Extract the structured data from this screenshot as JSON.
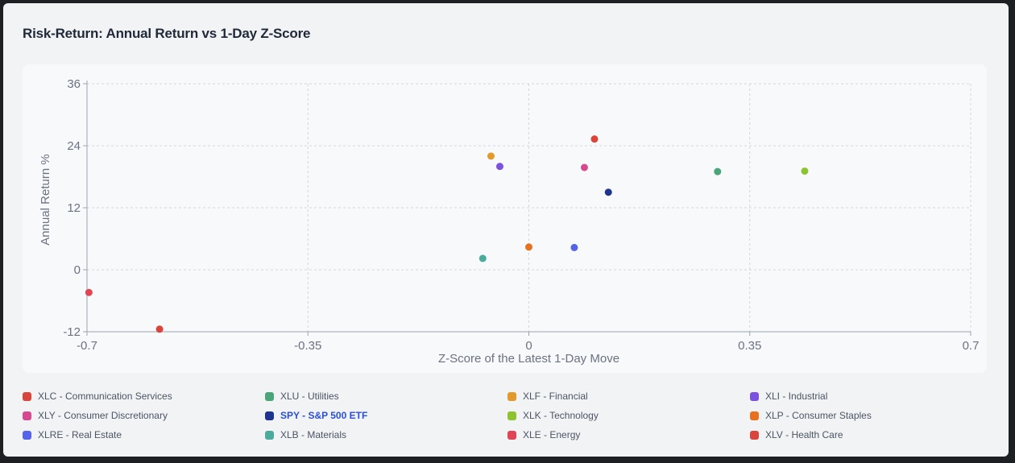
{
  "card": {
    "title": "Risk-Return: Annual Return vs 1-Day Z-Score"
  },
  "chart_data": {
    "type": "scatter",
    "title": "",
    "xlabel": "Z-Score of the Latest 1-Day Move",
    "ylabel": "Annual Return %",
    "xlim": [
      -0.7,
      0.7
    ],
    "ylim": [
      -12,
      36
    ],
    "x_ticks": [
      -0.7,
      -0.35,
      0,
      0.35,
      0.7
    ],
    "x_tick_labels": [
      "-0.7",
      "-0.35",
      "0",
      "0.35",
      "0.7"
    ],
    "y_ticks": [
      -12,
      0,
      12,
      24,
      36
    ],
    "y_tick_labels": [
      "-12",
      "0",
      "12",
      "24",
      "36"
    ],
    "grid": true,
    "legend_position": "bottom",
    "series": [
      {
        "name": "XLC - Communication Services",
        "color": "#d9453b",
        "x": 0.104,
        "y": 25.3
      },
      {
        "name": "XLU - Utilities",
        "color": "#4aa678",
        "x": 0.299,
        "y": 19.0
      },
      {
        "name": "XLF - Financial",
        "color": "#e29a2a",
        "x": -0.06,
        "y": 22.0
      },
      {
        "name": "XLI - Industrial",
        "color": "#7b52e0",
        "x": -0.046,
        "y": 20.0
      },
      {
        "name": "XLY - Consumer Discretionary",
        "color": "#d6498f",
        "x": 0.088,
        "y": 19.8
      },
      {
        "name": "SPY - S&P 500 ETF",
        "color": "#1f3391",
        "x": 0.126,
        "y": 15.0,
        "highlight": true
      },
      {
        "name": "XLK - Technology",
        "color": "#8cc32e",
        "x": 0.437,
        "y": 19.1
      },
      {
        "name": "XLP - Consumer Staples",
        "color": "#e8711f",
        "x": 0.0,
        "y": 4.4
      },
      {
        "name": "XLRE - Real Estate",
        "color": "#5563e8",
        "x": 0.072,
        "y": 4.3
      },
      {
        "name": "XLB - Materials",
        "color": "#4aab9c",
        "x": -0.073,
        "y": 2.2
      },
      {
        "name": "XLE - Energy",
        "color": "#e04556",
        "x": -0.697,
        "y": -4.4
      },
      {
        "name": "XLV - Health Care",
        "color": "#d9453b",
        "x": -0.585,
        "y": -11.5
      }
    ]
  }
}
